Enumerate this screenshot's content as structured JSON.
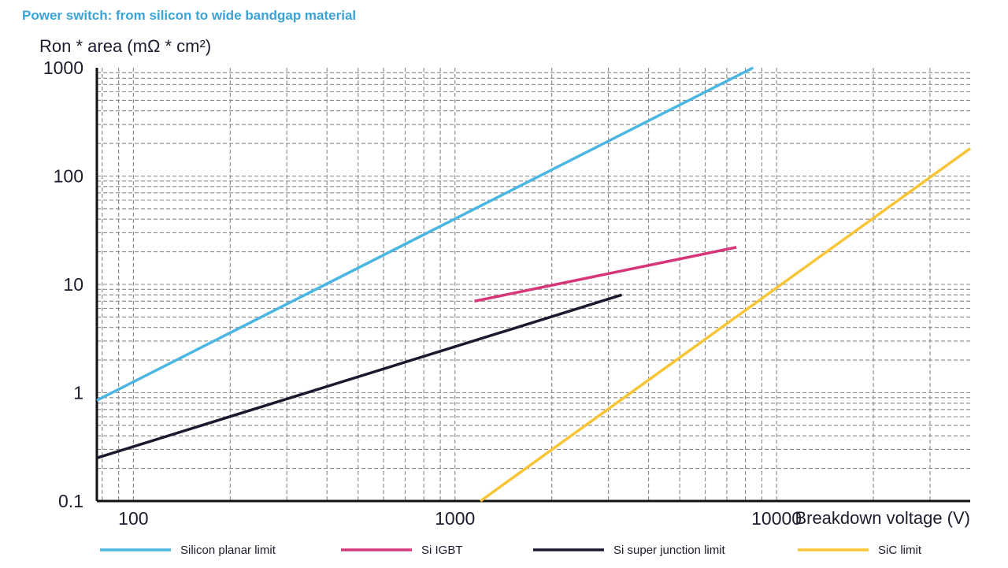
{
  "chart_data": {
    "type": "line",
    "title": "Power switch: from silicon to wide bandgap material",
    "ylabel": "Ron * area (mΩ * cm²)",
    "xlabel": "Breakdown voltage (V)",
    "x_scale": "log",
    "y_scale": "log",
    "xlim": [
      77,
      40000
    ],
    "ylim": [
      0.1,
      1000
    ],
    "x_ticks": [
      "100",
      "1000",
      "10000"
    ],
    "y_ticks": [
      "0.1",
      "1",
      "10",
      "100",
      "1000"
    ],
    "grid": true,
    "legend_position": "bottom",
    "colors": {
      "title": "#3aa3d8",
      "text": "#1c1c2e",
      "axis": "#111111",
      "grid": "#8a8a8a"
    },
    "series": [
      {
        "name": "Silicon planar limit",
        "color": "#4bb6e2",
        "x": [
          77,
          8450
        ],
        "y": [
          0.85,
          1000
        ]
      },
      {
        "name": "Si IGBT",
        "color": "#d6357a",
        "x": [
          1150,
          7500
        ],
        "y": [
          7,
          22
        ]
      },
      {
        "name": "Si super junction limit",
        "color": "#1a1a2e",
        "x": [
          77,
          3300
        ],
        "y": [
          0.25,
          8
        ]
      },
      {
        "name": "SiC limit",
        "color": "#f7c535",
        "x": [
          1200,
          40000
        ],
        "y": [
          0.1,
          180
        ]
      }
    ]
  }
}
